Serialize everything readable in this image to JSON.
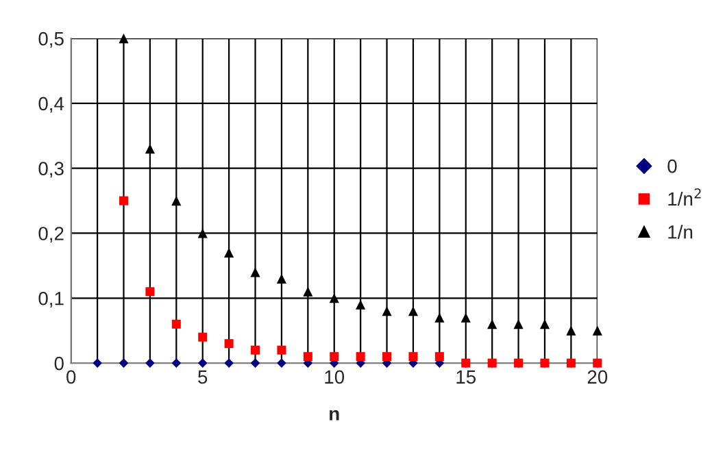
{
  "chart_data": {
    "type": "scatter",
    "xlabel": "n",
    "xlim": [
      0,
      20
    ],
    "xticks": [
      0,
      {
        "value": 1,
        "label": null
      },
      {
        "value": 2,
        "label": null
      },
      {
        "value": 3,
        "label": null
      },
      {
        "value": 4,
        "label": null
      },
      5,
      {
        "value": 6,
        "label": null
      },
      {
        "value": 7,
        "label": null
      },
      {
        "value": 8,
        "label": null
      },
      {
        "value": 9,
        "label": null
      },
      10,
      {
        "value": 11,
        "label": null
      },
      {
        "value": 12,
        "label": null
      },
      {
        "value": 13,
        "label": null
      },
      {
        "value": 14,
        "label": null
      },
      15,
      {
        "value": 16,
        "label": null
      },
      {
        "value": 17,
        "label": null
      },
      {
        "value": 18,
        "label": null
      },
      {
        "value": 19,
        "label": null
      },
      20
    ],
    "ylim": [
      0,
      0.5
    ],
    "yticks": [
      0,
      {
        "value": 0.1,
        "label": "0,1"
      },
      {
        "value": 0.2,
        "label": "0,2"
      },
      {
        "value": 0.3,
        "label": "0,3"
      },
      {
        "value": 0.4,
        "label": "0,4"
      },
      {
        "value": 0.5,
        "label": "0,5"
      }
    ],
    "grid": true,
    "legend": "right",
    "series": [
      {
        "name": "0",
        "color": "#000080",
        "marker": "diamond",
        "x": [
          1,
          2,
          3,
          4,
          5,
          6,
          7,
          8,
          9,
          10,
          11,
          12,
          13,
          14,
          15,
          16,
          17,
          18,
          19,
          20
        ],
        "values": [
          0,
          0,
          0,
          0,
          0,
          0,
          0,
          0,
          0,
          0,
          0,
          0,
          0,
          0,
          0,
          0,
          0,
          0,
          0,
          0
        ]
      },
      {
        "name": "1/n$^{2}$",
        "color": "#ff0000",
        "marker": "square",
        "x": [
          2,
          3,
          4,
          5,
          6,
          7,
          8,
          9,
          10,
          11,
          12,
          13,
          14,
          15,
          16,
          17,
          18,
          19,
          20
        ],
        "values": [
          0.25,
          0.11,
          0.06,
          0.04,
          0.03,
          0.02,
          0.02,
          0.01,
          0.01,
          0.01,
          0.01,
          0.01,
          0.01,
          0.0,
          0.0,
          0.0,
          0.0,
          0.0,
          0.0
        ]
      },
      {
        "name": "1/n",
        "color": "#000000",
        "marker": "triangle",
        "x": [
          2,
          3,
          4,
          5,
          6,
          7,
          8,
          9,
          10,
          11,
          12,
          13,
          14,
          15,
          16,
          17,
          18,
          19,
          20
        ],
        "values": [
          0.5,
          0.33,
          0.25,
          0.2,
          0.17,
          0.14,
          0.13,
          0.11,
          0.1,
          0.09,
          0.08,
          0.08,
          0.07,
          0.07,
          0.06,
          0.06,
          0.06,
          0.05,
          0.05
        ]
      }
    ]
  }
}
